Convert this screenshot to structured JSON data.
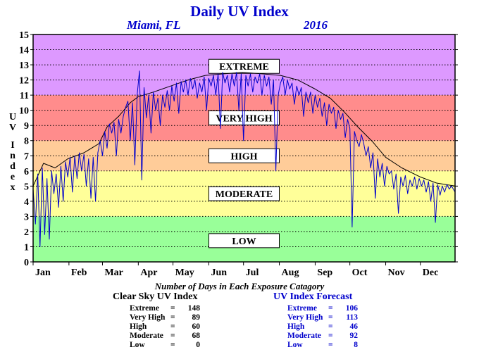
{
  "header": {
    "title": "Daily UV Index",
    "location": "Miami, FL",
    "year": "2016"
  },
  "chart_data": {
    "type": "line",
    "title": "Daily UV Index",
    "ylabel": "UV Index",
    "ylim": [
      0,
      15
    ],
    "yticks": [
      0,
      1,
      2,
      3,
      4,
      5,
      6,
      7,
      8,
      9,
      10,
      11,
      12,
      13,
      14,
      15
    ],
    "xlim": [
      1,
      366
    ],
    "x_ticks": [
      {
        "label": "Jan",
        "day": 1
      },
      {
        "label": "Feb",
        "day": 32
      },
      {
        "label": "Mar",
        "day": 61
      },
      {
        "label": "Apr",
        "day": 92
      },
      {
        "label": "May",
        "day": 122
      },
      {
        "label": "Jun",
        "day": 153
      },
      {
        "label": "Jul",
        "day": 183
      },
      {
        "label": "Aug",
        "day": 214
      },
      {
        "label": "Sep",
        "day": 245
      },
      {
        "label": "Oct",
        "day": 275
      },
      {
        "label": "Nov",
        "day": 306
      },
      {
        "label": "Dec",
        "day": 336
      }
    ],
    "bands": [
      {
        "name": "LOW",
        "from": 0,
        "to": 3,
        "color": "#99ff99"
      },
      {
        "name": "MODERATE",
        "from": 3,
        "to": 6,
        "color": "#ffff99"
      },
      {
        "name": "HIGH",
        "from": 6,
        "to": 8,
        "color": "#ffcc99"
      },
      {
        "name": "VERY HIGH",
        "from": 8,
        "to": 11,
        "color": "#ff8c8c"
      },
      {
        "name": "EXTREME",
        "from": 11,
        "to": 15,
        "color": "#dd99ff"
      }
    ],
    "band_labels": [
      {
        "text": "EXTREME",
        "y": 12.9
      },
      {
        "text": "VERY HIGH",
        "y": 9.5
      },
      {
        "text": "HIGH",
        "y": 7.0
      },
      {
        "text": "MODERATE",
        "y": 4.5
      },
      {
        "text": "LOW",
        "y": 1.4
      }
    ],
    "series": [
      {
        "name": "Clear Sky UV Index",
        "color": "#000000",
        "points": [
          [
            1,
            5.0
          ],
          [
            10,
            6.5
          ],
          [
            20,
            6.2
          ],
          [
            31,
            6.8
          ],
          [
            45,
            7.2
          ],
          [
            58,
            7.8
          ],
          [
            65,
            8.9
          ],
          [
            75,
            9.6
          ],
          [
            85,
            10.5
          ],
          [
            92,
            10.9
          ],
          [
            105,
            11.2
          ],
          [
            120,
            11.6
          ],
          [
            135,
            12.0
          ],
          [
            150,
            12.3
          ],
          [
            165,
            12.4
          ],
          [
            182,
            12.5
          ],
          [
            200,
            12.4
          ],
          [
            215,
            12.3
          ],
          [
            230,
            12.0
          ],
          [
            245,
            11.4
          ],
          [
            258,
            10.8
          ],
          [
            270,
            9.9
          ],
          [
            282,
            8.9
          ],
          [
            295,
            7.9
          ],
          [
            306,
            6.9
          ],
          [
            320,
            6.2
          ],
          [
            336,
            5.6
          ],
          [
            350,
            5.2
          ],
          [
            366,
            5.0
          ]
        ]
      },
      {
        "name": "UV Index Forecast",
        "color": "#0000cc",
        "points": [
          [
            1,
            4.8
          ],
          [
            3,
            2.5
          ],
          [
            5,
            5.8
          ],
          [
            7,
            1.0
          ],
          [
            9,
            6.2
          ],
          [
            11,
            1.8
          ],
          [
            13,
            5.5
          ],
          [
            15,
            1.5
          ],
          [
            17,
            6.0
          ],
          [
            19,
            4.5
          ],
          [
            21,
            5.8
          ],
          [
            23,
            3.6
          ],
          [
            25,
            6.3
          ],
          [
            27,
            4.0
          ],
          [
            29,
            6.6
          ],
          [
            31,
            5.6
          ],
          [
            33,
            6.9
          ],
          [
            35,
            4.6
          ],
          [
            37,
            7.0
          ],
          [
            39,
            5.5
          ],
          [
            41,
            7.2
          ],
          [
            43,
            6.0
          ],
          [
            45,
            7.1
          ],
          [
            47,
            5.0
          ],
          [
            49,
            6.8
          ],
          [
            51,
            4.2
          ],
          [
            53,
            6.9
          ],
          [
            55,
            4.0
          ],
          [
            57,
            7.2
          ],
          [
            59,
            8.0
          ],
          [
            61,
            7.0
          ],
          [
            63,
            8.6
          ],
          [
            65,
            7.5
          ],
          [
            67,
            9.1
          ],
          [
            69,
            8.5
          ],
          [
            71,
            9.2
          ],
          [
            73,
            7.0
          ],
          [
            75,
            9.4
          ],
          [
            77,
            8.5
          ],
          [
            79,
            9.6
          ],
          [
            81,
            10.2
          ],
          [
            83,
            10.6
          ],
          [
            85,
            8.0
          ],
          [
            87,
            10.5
          ],
          [
            89,
            6.4
          ],
          [
            91,
            11.0
          ],
          [
            93,
            12.6
          ],
          [
            95,
            5.4
          ],
          [
            97,
            11.5
          ],
          [
            99,
            9.5
          ],
          [
            101,
            11.0
          ],
          [
            103,
            8.5
          ],
          [
            105,
            11.2
          ],
          [
            107,
            10.0
          ],
          [
            109,
            10.8
          ],
          [
            111,
            9.0
          ],
          [
            113,
            11.0
          ],
          [
            115,
            10.2
          ],
          [
            117,
            11.3
          ],
          [
            119,
            10.0
          ],
          [
            121,
            11.6
          ],
          [
            123,
            10.6
          ],
          [
            125,
            11.8
          ],
          [
            127,
            9.8
          ],
          [
            129,
            11.9
          ],
          [
            131,
            11.2
          ],
          [
            133,
            12.0
          ],
          [
            135,
            11.0
          ],
          [
            137,
            12.1
          ],
          [
            139,
            11.4
          ],
          [
            141,
            12.0
          ],
          [
            143,
            10.8
          ],
          [
            145,
            11.8
          ],
          [
            147,
            11.2
          ],
          [
            149,
            12.2
          ],
          [
            151,
            10.0
          ],
          [
            153,
            12.1
          ],
          [
            155,
            11.6
          ],
          [
            157,
            12.3
          ],
          [
            159,
            11.0
          ],
          [
            161,
            12.4
          ],
          [
            163,
            8.8
          ],
          [
            165,
            12.5
          ],
          [
            167,
            11.8
          ],
          [
            169,
            12.3
          ],
          [
            171,
            11.2
          ],
          [
            173,
            12.4
          ],
          [
            175,
            11.6
          ],
          [
            177,
            12.5
          ],
          [
            179,
            10.0
          ],
          [
            181,
            12.4
          ],
          [
            183,
            8.0
          ],
          [
            185,
            12.3
          ],
          [
            187,
            11.6
          ],
          [
            189,
            12.4
          ],
          [
            191,
            11.2
          ],
          [
            193,
            12.2
          ],
          [
            195,
            11.8
          ],
          [
            197,
            12.4
          ],
          [
            199,
            11.0
          ],
          [
            201,
            12.3
          ],
          [
            203,
            11.6
          ],
          [
            205,
            12.2
          ],
          [
            207,
            10.4
          ],
          [
            209,
            12.0
          ],
          [
            211,
            6.0
          ],
          [
            213,
            11.0
          ],
          [
            215,
            11.8
          ],
          [
            217,
            12.2
          ],
          [
            219,
            11.0
          ],
          [
            221,
            12.0
          ],
          [
            223,
            11.4
          ],
          [
            225,
            11.8
          ],
          [
            227,
            10.4
          ],
          [
            229,
            11.6
          ],
          [
            231,
            11.0
          ],
          [
            233,
            11.5
          ],
          [
            235,
            9.6
          ],
          [
            237,
            11.2
          ],
          [
            239,
            10.5
          ],
          [
            241,
            11.2
          ],
          [
            243,
            9.8
          ],
          [
            245,
            11.0
          ],
          [
            247,
            10.2
          ],
          [
            249,
            10.8
          ],
          [
            251,
            9.6
          ],
          [
            253,
            10.5
          ],
          [
            255,
            9.0
          ],
          [
            257,
            10.4
          ],
          [
            259,
            9.8
          ],
          [
            261,
            10.2
          ],
          [
            263,
            8.8
          ],
          [
            265,
            10.0
          ],
          [
            267,
            9.4
          ],
          [
            269,
            9.8
          ],
          [
            271,
            8.2
          ],
          [
            273,
            9.4
          ],
          [
            275,
            8.8
          ],
          [
            277,
            2.3
          ],
          [
            279,
            8.6
          ],
          [
            281,
            8.0
          ],
          [
            283,
            7.6
          ],
          [
            285,
            8.4
          ],
          [
            287,
            7.8
          ],
          [
            289,
            7.0
          ],
          [
            291,
            7.6
          ],
          [
            293,
            6.2
          ],
          [
            295,
            7.2
          ],
          [
            297,
            4.2
          ],
          [
            299,
            6.8
          ],
          [
            301,
            5.6
          ],
          [
            303,
            6.5
          ],
          [
            305,
            5.0
          ],
          [
            307,
            6.3
          ],
          [
            309,
            5.8
          ],
          [
            311,
            6.0
          ],
          [
            313,
            4.8
          ],
          [
            315,
            5.8
          ],
          [
            317,
            3.2
          ],
          [
            319,
            5.6
          ],
          [
            321,
            5.0
          ],
          [
            323,
            5.7
          ],
          [
            325,
            4.5
          ],
          [
            327,
            5.4
          ],
          [
            329,
            5.0
          ],
          [
            331,
            5.6
          ],
          [
            333,
            4.8
          ],
          [
            335,
            5.5
          ],
          [
            337,
            5.0
          ],
          [
            339,
            5.4
          ],
          [
            341,
            4.6
          ],
          [
            343,
            5.3
          ],
          [
            345,
            4.0
          ],
          [
            347,
            5.2
          ],
          [
            349,
            2.6
          ],
          [
            351,
            5.1
          ],
          [
            353,
            4.4
          ],
          [
            355,
            5.0
          ],
          [
            357,
            4.6
          ],
          [
            359,
            5.1
          ],
          [
            361,
            4.8
          ],
          [
            363,
            5.0
          ],
          [
            366,
            4.6
          ]
        ]
      }
    ],
    "caption": "Number of Days in Each Exposure Catagory",
    "stats": [
      {
        "title": "Clear Sky UV Index",
        "rows": [
          {
            "label": "Extreme",
            "value": "148"
          },
          {
            "label": "Very High",
            "value": "89"
          },
          {
            "label": "High",
            "value": "60"
          },
          {
            "label": "Moderate",
            "value": "68"
          },
          {
            "label": "Low",
            "value": "0"
          }
        ]
      },
      {
        "title": "UV Index Forecast",
        "rows": [
          {
            "label": "Extreme",
            "value": "106"
          },
          {
            "label": "Very High",
            "value": "113"
          },
          {
            "label": "High",
            "value": "46"
          },
          {
            "label": "Moderate",
            "value": "92"
          },
          {
            "label": "Low",
            "value": "8"
          }
        ]
      }
    ]
  }
}
